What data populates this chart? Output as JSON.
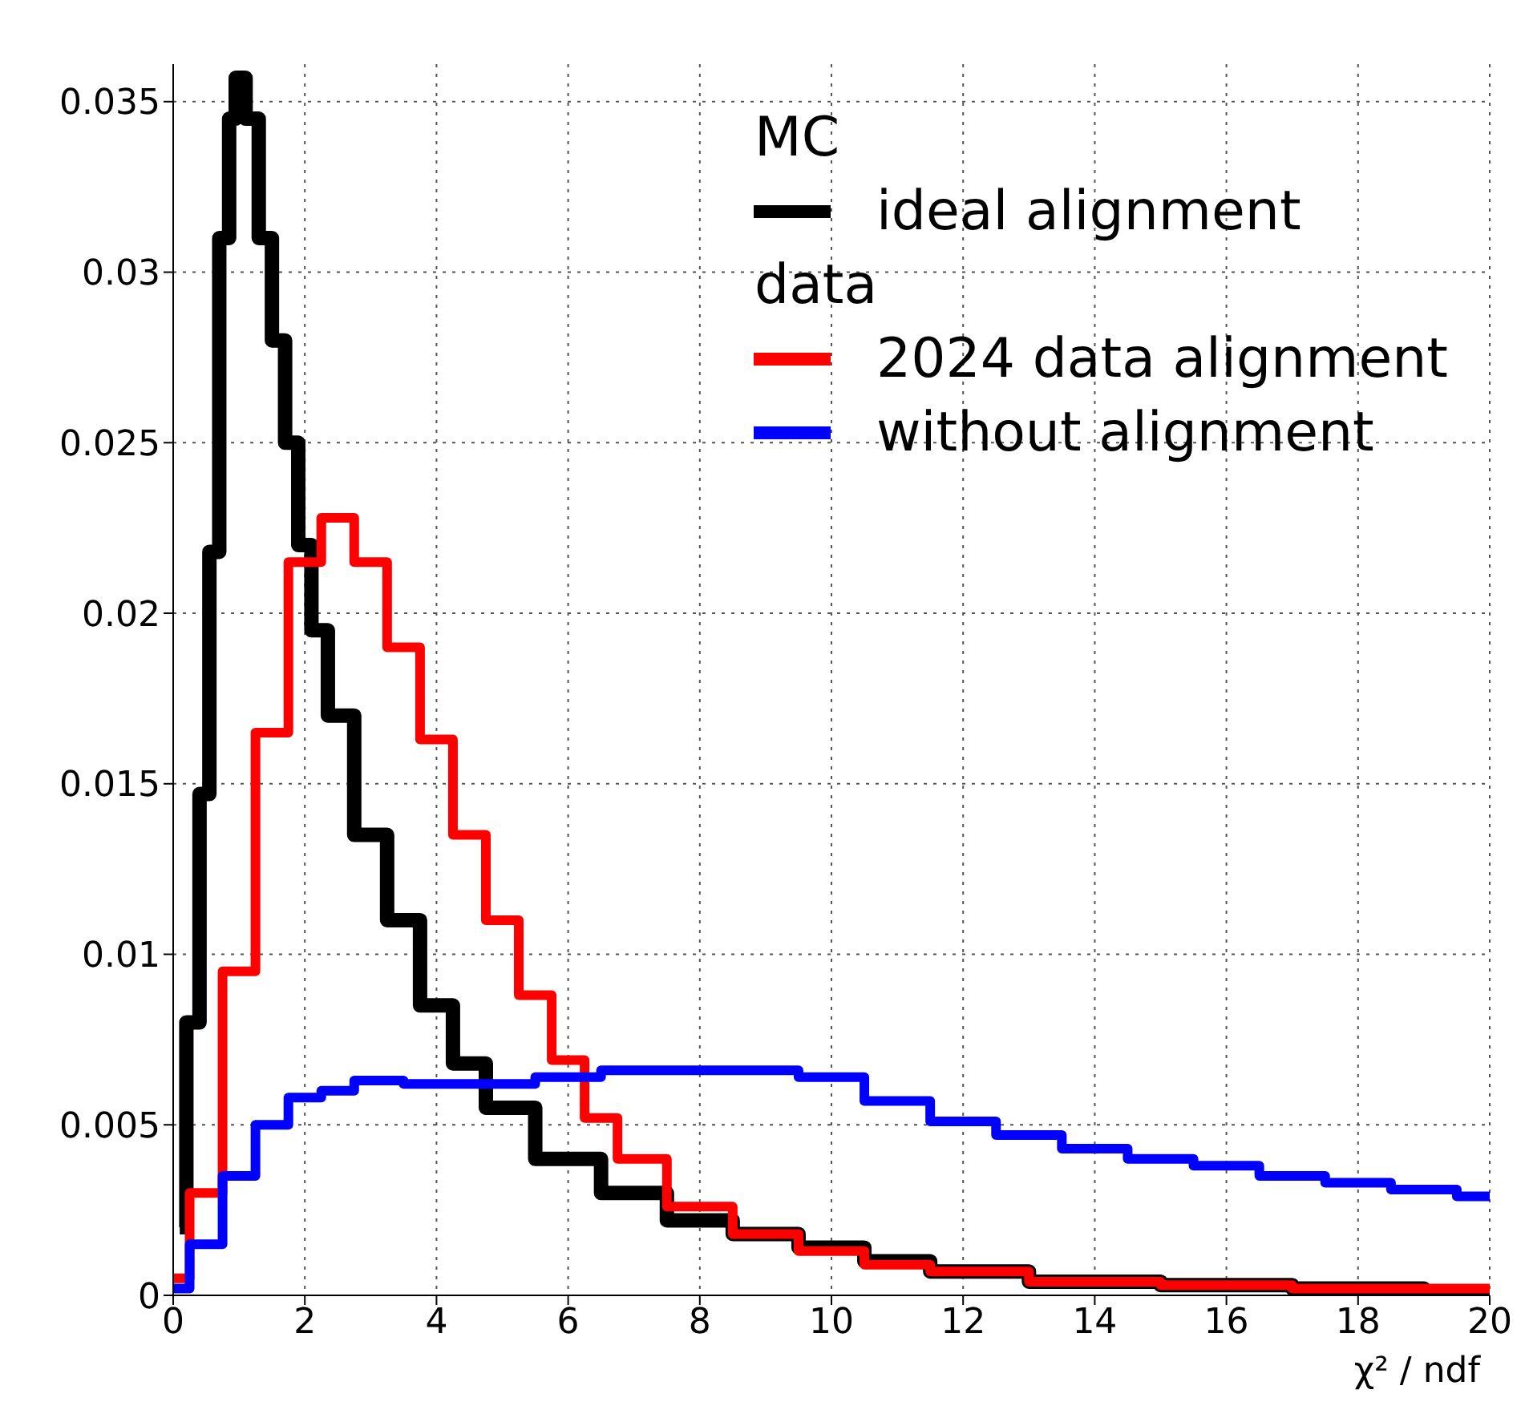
{
  "chart_data": {
    "type": "step",
    "xlabel": "χ² / ndf",
    "xlim": [
      0,
      20
    ],
    "xticks": [
      0,
      2,
      4,
      6,
      8,
      10,
      12,
      14,
      16,
      18,
      20
    ],
    "ylim": [
      0,
      0.0361
    ],
    "yticks": [
      0,
      0.005,
      0.01,
      0.015,
      0.02,
      0.025,
      0.03,
      0.035
    ],
    "grid": true,
    "legend": "top right",
    "line_style": "solid",
    "marker": "none",
    "annotations": [
      "MC",
      "data"
    ],
    "series": [
      {
        "name": "ideal alignment",
        "color": "#000000",
        "x": [
          0.1,
          0.3,
          0.5,
          0.6,
          0.8,
          0.9,
          1.0,
          1.2,
          1.4,
          1.6,
          1.8,
          2.0,
          2.2,
          2.5,
          3,
          3.5,
          4,
          4.5,
          5,
          6,
          7,
          8,
          9,
          10,
          11,
          12,
          14,
          16,
          18,
          20
        ],
        "values": [
          0.002,
          0.008,
          0.0147,
          0.0218,
          0.031,
          0.0345,
          0.0357,
          0.0345,
          0.031,
          0.028,
          0.025,
          0.022,
          0.0195,
          0.017,
          0.0135,
          0.011,
          0.0085,
          0.0068,
          0.0055,
          0.004,
          0.003,
          0.0022,
          0.0018,
          0.0014,
          0.001,
          0.0007,
          0.0004,
          0.0003,
          0.0002,
          0.0001
        ]
      },
      {
        "name": "2024 data alignment",
        "color": "#ff0000",
        "x": [
          0,
          0.5,
          1,
          1.5,
          2,
          2.5,
          3,
          3.5,
          4,
          4.5,
          5,
          5.5,
          6,
          6.5,
          7,
          8,
          9,
          10,
          11,
          12,
          14,
          16,
          18,
          20
        ],
        "values": [
          0.0005,
          0.003,
          0.0095,
          0.0165,
          0.0215,
          0.0228,
          0.0215,
          0.019,
          0.0163,
          0.0135,
          0.011,
          0.0088,
          0.0069,
          0.0052,
          0.004,
          0.0026,
          0.0018,
          0.0013,
          0.0009,
          0.0007,
          0.0004,
          0.0003,
          0.0002,
          0.0002
        ]
      },
      {
        "name": "without alignment",
        "color": "#0000ff",
        "x": [
          0,
          0.5,
          1,
          1.5,
          2,
          2.5,
          3,
          4,
          5,
          6,
          7,
          8,
          9,
          10,
          11,
          12,
          13,
          14,
          15,
          16,
          17,
          18,
          19,
          20
        ],
        "values": [
          0.0002,
          0.0015,
          0.0035,
          0.005,
          0.0058,
          0.006,
          0.0063,
          0.0062,
          0.0062,
          0.0064,
          0.0066,
          0.0066,
          0.0066,
          0.0064,
          0.0057,
          0.0051,
          0.0047,
          0.0043,
          0.004,
          0.0038,
          0.0035,
          0.0033,
          0.0031,
          0.0029
        ]
      }
    ]
  }
}
